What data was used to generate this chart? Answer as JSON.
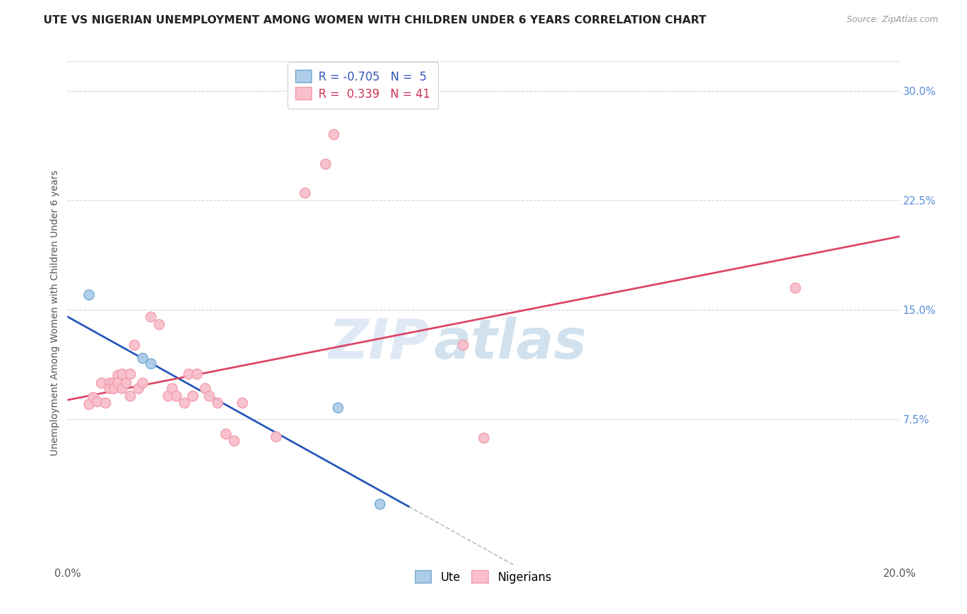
{
  "title": "UTE VS NIGERIAN UNEMPLOYMENT AMONG WOMEN WITH CHILDREN UNDER 6 YEARS CORRELATION CHART",
  "source": "Source: ZipAtlas.com",
  "ylabel": "Unemployment Among Women with Children Under 6 years",
  "xlim": [
    0.0,
    0.2
  ],
  "ylim": [
    -0.025,
    0.32
  ],
  "xticks": [
    0.0,
    0.05,
    0.1,
    0.15,
    0.2
  ],
  "xticklabels": [
    "0.0%",
    "",
    "",
    "",
    "20.0%"
  ],
  "yticks_right": [
    0.075,
    0.15,
    0.225,
    0.3
  ],
  "ytick_right_labels": [
    "7.5%",
    "15.0%",
    "22.5%",
    "30.0%"
  ],
  "grid_color": "#cccccc",
  "background_color": "#ffffff",
  "watermark_zip": "ZIP",
  "watermark_atlas": "atlas",
  "legend_ute_r": "-0.705",
  "legend_ute_n": "5",
  "legend_nig_r": "0.339",
  "legend_nig_n": "41",
  "ute_color": "#7bafd4",
  "ute_color_fill": "#aecde8",
  "nigerian_color": "#f4a0b0",
  "nigerian_color_fill": "#f8c0cc",
  "trendline_ute_color": "#2255bb",
  "trendline_nig_color": "#dd4466",
  "trendline_ext_color": "#bbbbbb",
  "ute_trend_x0": 0.0,
  "ute_trend_y0": 0.145,
  "ute_trend_x1": 0.082,
  "ute_trend_y1": 0.015,
  "ute_trend_ext_x1": 0.13,
  "nig_trend_x0": 0.0,
  "nig_trend_y0": 0.088,
  "nig_trend_x1": 0.2,
  "nig_trend_y1": 0.2,
  "ute_points": [
    [
      0.005,
      0.16
    ],
    [
      0.018,
      0.117
    ],
    [
      0.02,
      0.113
    ],
    [
      0.065,
      0.083
    ],
    [
      0.075,
      0.017
    ]
  ],
  "nigerian_points": [
    [
      0.005,
      0.085
    ],
    [
      0.006,
      0.09
    ],
    [
      0.007,
      0.087
    ],
    [
      0.008,
      0.1
    ],
    [
      0.009,
      0.086
    ],
    [
      0.01,
      0.1
    ],
    [
      0.01,
      0.096
    ],
    [
      0.011,
      0.1
    ],
    [
      0.011,
      0.096
    ],
    [
      0.012,
      0.105
    ],
    [
      0.012,
      0.1
    ],
    [
      0.013,
      0.106
    ],
    [
      0.013,
      0.096
    ],
    [
      0.014,
      0.1
    ],
    [
      0.015,
      0.106
    ],
    [
      0.015,
      0.091
    ],
    [
      0.016,
      0.126
    ],
    [
      0.017,
      0.096
    ],
    [
      0.018,
      0.1
    ],
    [
      0.02,
      0.145
    ],
    [
      0.022,
      0.14
    ],
    [
      0.024,
      0.091
    ],
    [
      0.025,
      0.096
    ],
    [
      0.026,
      0.091
    ],
    [
      0.028,
      0.086
    ],
    [
      0.029,
      0.106
    ],
    [
      0.03,
      0.091
    ],
    [
      0.031,
      0.106
    ],
    [
      0.033,
      0.096
    ],
    [
      0.034,
      0.091
    ],
    [
      0.036,
      0.086
    ],
    [
      0.038,
      0.065
    ],
    [
      0.04,
      0.06
    ],
    [
      0.042,
      0.086
    ],
    [
      0.05,
      0.063
    ],
    [
      0.057,
      0.23
    ],
    [
      0.062,
      0.25
    ],
    [
      0.064,
      0.27
    ],
    [
      0.095,
      0.126
    ],
    [
      0.1,
      0.062
    ],
    [
      0.175,
      0.165
    ]
  ]
}
